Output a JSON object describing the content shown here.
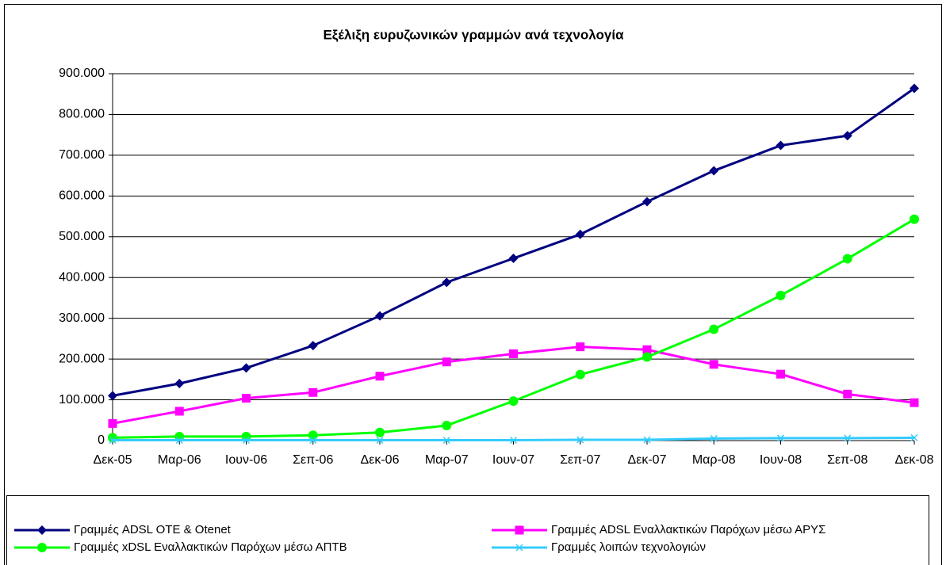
{
  "chart_data": {
    "type": "line",
    "title": "Εξέλιξη ευρυζωνικών γραμμών ανά τεχνολογία",
    "categories": [
      "Δεκ-05",
      "Μαρ-06",
      "Ιουν-06",
      "Σεπ-06",
      "Δεκ-06",
      "Μαρ-07",
      "Ιουν-07",
      "Σεπ-07",
      "Δεκ-07",
      "Μαρ-08",
      "Ιουν-08",
      "Σεπ-08",
      "Δεκ-08"
    ],
    "series": [
      {
        "name": "Γραμμές ADSL OTE & Otenet",
        "color": "#000080",
        "marker": "diamond",
        "values": [
          110000,
          140000,
          178000,
          233000,
          306000,
          388000,
          447000,
          506000,
          586000,
          662000,
          724000,
          748000,
          864000
        ]
      },
      {
        "name": "Γραμμές ADSL Εναλλακτικών Παρόχων μέσω ΑΡΥΣ",
        "color": "#FF00FF",
        "marker": "square",
        "values": [
          42000,
          72000,
          104000,
          118000,
          158000,
          193000,
          213000,
          230000,
          223000,
          187000,
          163000,
          114000,
          93000
        ]
      },
      {
        "name": "Γραμμές xDSL Εναλλακτικών Παρόχων μέσω ΑΠΤΒ",
        "color": "#00FF00",
        "marker": "circle",
        "values": [
          7000,
          10000,
          10000,
          13000,
          20000,
          37000,
          97000,
          162000,
          205000,
          273000,
          356000,
          446000,
          543000
        ]
      },
      {
        "name": "Γραμμές λοιπών τεχνολογιών",
        "color": "#33CCFF",
        "marker": "x",
        "values": [
          1000,
          1000,
          1000,
          1000,
          1000,
          1000,
          1000,
          2000,
          2000,
          5000,
          6000,
          6000,
          7000
        ]
      }
    ],
    "ylim": [
      0,
      900000
    ],
    "yticks": [
      0,
      {
        "value": 100000,
        "label": "100.000"
      },
      {
        "value": 200000,
        "label": "200.000"
      },
      {
        "value": 300000,
        "label": "300.000"
      },
      {
        "value": 400000,
        "label": "400.000"
      },
      {
        "value": 500000,
        "label": "500.000"
      },
      {
        "value": 600000,
        "label": "600.000"
      },
      {
        "value": 700000,
        "label": "700.000"
      },
      {
        "value": 800000,
        "label": "800.000"
      },
      {
        "value": 900000,
        "label": "900.000"
      }
    ],
    "grid": true,
    "legend": "bottom"
  }
}
